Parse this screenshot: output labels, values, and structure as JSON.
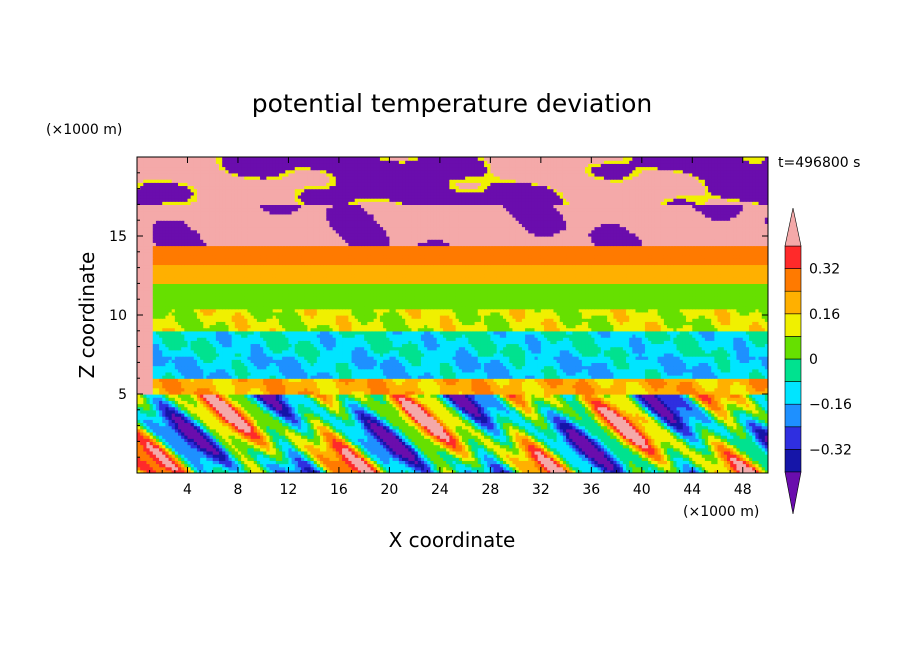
{
  "chart_data": {
    "type": "heatmap",
    "title": "potential temperature deviation",
    "xlabel": "X coordinate",
    "ylabel": "Z coordinate",
    "x_unit": "(×1000 m)",
    "y_unit": "(×1000 m)",
    "time_label": "t=496800 s",
    "xlim": [
      0,
      50
    ],
    "ylim": [
      0,
      20
    ],
    "x_ticks": [
      4,
      8,
      12,
      16,
      20,
      24,
      28,
      32,
      36,
      40,
      44,
      48
    ],
    "y_ticks": [
      5,
      10,
      15
    ],
    "colorbar": {
      "levels": [
        -0.4,
        -0.32,
        -0.24,
        -0.16,
        -0.08,
        0,
        0.08,
        0.16,
        0.24,
        0.32,
        0.4
      ],
      "tick_labels": [
        "0.32",
        "0.16",
        "0",
        "−0.16",
        "−0.32"
      ],
      "tick_values": [
        0.32,
        0.16,
        0,
        -0.16,
        -0.32
      ],
      "colors": [
        "#6a0dad",
        "#1515a8",
        "#2f2fe0",
        "#1e90ff",
        "#00e5ff",
        "#00e28f",
        "#66e000",
        "#f0f000",
        "#ffb000",
        "#ff7a00",
        "#ff2a2a",
        "#f4a9a9"
      ],
      "extend": "both"
    },
    "fields": [
      {
        "z": [
          17.0,
          20.0
        ],
        "value": -0.45,
        "note": "upper layer alternating patches"
      },
      {
        "z": [
          14.5,
          17.0
        ],
        "value": 0.45
      },
      {
        "z": [
          13.2,
          14.5
        ],
        "value": 0.3
      },
      {
        "z": [
          12.0,
          13.2
        ],
        "value": 0.22
      },
      {
        "z": [
          10.5,
          12.0
        ],
        "value": 0.05
      },
      {
        "z": [
          9.0,
          10.5
        ],
        "value": 0.1
      },
      {
        "z": [
          7.5,
          9.0
        ],
        "value": -0.1
      },
      {
        "z": [
          6.0,
          7.5
        ],
        "value": -0.14
      },
      {
        "z": [
          5.0,
          6.0
        ],
        "value": 0.2
      },
      {
        "z": [
          0,
          5.0
        ],
        "value": -0.2,
        "note": "boundary layer with warm and cold plumes"
      }
    ]
  }
}
